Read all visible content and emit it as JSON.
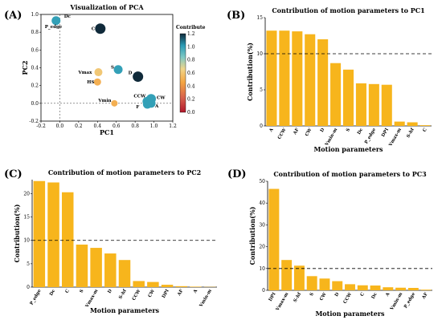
{
  "chart_data": [
    {
      "panel_label": "(A)",
      "type": "scatter",
      "title": "Visualization of PCA",
      "xlabel": "PC1",
      "ylabel": "PC2",
      "xlim": [
        -0.2,
        1.2
      ],
      "ylim": [
        -0.2,
        1.0
      ],
      "xticks": [
        "-0.2",
        "0.0",
        "0.2",
        "0.4",
        "0.6",
        "0.8",
        "1.0",
        "1.2"
      ],
      "yticks": [
        "-0.2",
        "0.0",
        "0.2",
        "0.4",
        "0.6",
        "0.8",
        "1.0"
      ],
      "colorbar": {
        "title": "Contribute",
        "ticks": [
          "0.0",
          "0.2",
          "0.4",
          "0.6",
          "0.8",
          "1.0",
          "1.2"
        ],
        "range": [
          0,
          1.2
        ],
        "colors": [
          "#b2182b",
          "#d6604d",
          "#f4a442",
          "#f0d58a",
          "#7fc9c4",
          "#2a9bb5",
          "#102a3a"
        ]
      },
      "points": [
        {
          "label": "Dc",
          "x": -0.04,
          "y": 0.93,
          "value": 1.0
        },
        {
          "label": "P_edge",
          "x": -0.04,
          "y": 0.93,
          "value": 1.0
        },
        {
          "label": "C",
          "x": 0.43,
          "y": 0.84,
          "value": 1.2
        },
        {
          "label": "S",
          "x": 0.62,
          "y": 0.38,
          "value": 1.0
        },
        {
          "label": "D",
          "x": 0.83,
          "y": 0.3,
          "value": 1.2
        },
        {
          "label": "Vmax",
          "x": 0.41,
          "y": 0.35,
          "value": 0.6
        },
        {
          "label": "HS",
          "x": 0.4,
          "y": 0.24,
          "value": 0.5
        },
        {
          "label": "Vmin",
          "x": 0.58,
          "y": 0.0,
          "value": 0.5
        },
        {
          "label": "CCW",
          "x": 0.93,
          "y": 0.02,
          "value": 1.0
        },
        {
          "label": "CW",
          "x": 0.97,
          "y": 0.05,
          "value": 1.0
        },
        {
          "label": "F",
          "x": 0.93,
          "y": -0.01,
          "value": 1.0
        },
        {
          "label": "A",
          "x": 0.97,
          "y": 0.0,
          "value": 1.0
        }
      ]
    },
    {
      "panel_label": "(B)",
      "type": "bar",
      "title": "Contribution of motion parameters to PC1",
      "xlabel": "Motion parameters",
      "ylabel": "Contribution(%)",
      "ylim": [
        0,
        15
      ],
      "yticks": [
        "0",
        "5",
        "10",
        "15"
      ],
      "reference_line": 10,
      "categories": [
        "A",
        "CCW",
        "AF",
        "CW",
        "D",
        "Vmin-m",
        "S",
        "Dc",
        "P_edge",
        "DPI",
        "Vmax-m",
        "S-hf",
        "C"
      ],
      "values": [
        13.2,
        13.2,
        13.1,
        12.7,
        12.0,
        8.7,
        7.8,
        5.9,
        5.8,
        5.7,
        0.6,
        0.5,
        0.1
      ]
    },
    {
      "panel_label": "(C)",
      "type": "bar",
      "title": "Contribution of motion parameters to PC2",
      "xlabel": "Motion parameters",
      "ylabel": "Contribution(%)",
      "ylim": [
        0,
        23
      ],
      "yticks": [
        "0",
        "5",
        "10",
        "15",
        "20"
      ],
      "reference_line": 10,
      "categories": [
        "P_edge",
        "Dc",
        "C",
        "S",
        "Vmax-m",
        "D",
        "S-hf",
        "CCW",
        "CW",
        "DPI",
        "AF",
        "A",
        "Vmin-m"
      ],
      "values": [
        22.7,
        22.4,
        20.3,
        9.1,
        8.4,
        7.2,
        5.8,
        1.3,
        1.1,
        0.5,
        0.2,
        0.1,
        0.05
      ]
    },
    {
      "panel_label": "(D)",
      "type": "bar",
      "title": "Contribution of motion parameters to PC3",
      "xlabel": "Motion parameters",
      "ylabel": "Contribution(%)",
      "ylim": [
        0,
        50
      ],
      "yticks": [
        "0",
        "10",
        "20",
        "30",
        "40",
        "50"
      ],
      "reference_line": 10,
      "categories": [
        "DPI",
        "Vmax-m",
        "S-hf",
        "S",
        "CW",
        "D",
        "CCW",
        "C",
        "Dc",
        "A",
        "Vmin-m",
        "P_edge",
        "AF"
      ],
      "values": [
        46.5,
        13.9,
        11.3,
        6.5,
        5.4,
        4.2,
        2.8,
        2.3,
        2.2,
        1.4,
        1.2,
        1.1,
        0.3
      ]
    }
  ]
}
